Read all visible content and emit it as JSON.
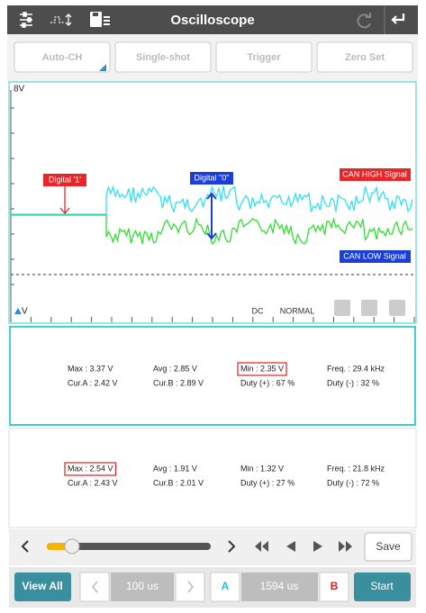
{
  "header": {
    "title": "Oscilloscope"
  },
  "toolbar": [
    "Auto-CH",
    "Single-shot",
    "Trigger",
    "Zero Set"
  ],
  "scope": {
    "y_top_label": "8V",
    "y_bottom_label": "V",
    "annotations": {
      "digital_1": "Digital '1'",
      "digital_0": "Digital \"0\"",
      "can_high": "CAN HIGH Signal",
      "can_low": "CAN LOW Signal"
    },
    "coupling": "DC",
    "mode": "NORMAL"
  },
  "panels": [
    {
      "rows": [
        [
          "Max : 3.37 V",
          "Avg : 2.85 V",
          "Min : 2.35 V",
          "Freq. : 29.4 kHz"
        ],
        [
          "Cur.A : 2.42 V",
          "Cur.B : 2.89 V",
          "Duty (+) : 67 %",
          "Duty (-) : 32 %"
        ]
      ]
    },
    {
      "rows": [
        [
          "Max : 2.54 V",
          "Avg : 1.91 V",
          "Min : 1.32 V",
          "Freq. : 21.8 kHz"
        ],
        [
          "Cur.A : 2.43 V",
          "Cur.B : 2.01 V",
          "Duty (+) : 27 %",
          "Duty (-) : 72 %"
        ]
      ]
    }
  ],
  "controls": {
    "save": "Save"
  },
  "footer": {
    "view_all": "View All",
    "time_div": "100 us",
    "cursor_a": "A",
    "cursor_time": "1594 us",
    "cursor_b": "B",
    "start": "Start"
  }
}
